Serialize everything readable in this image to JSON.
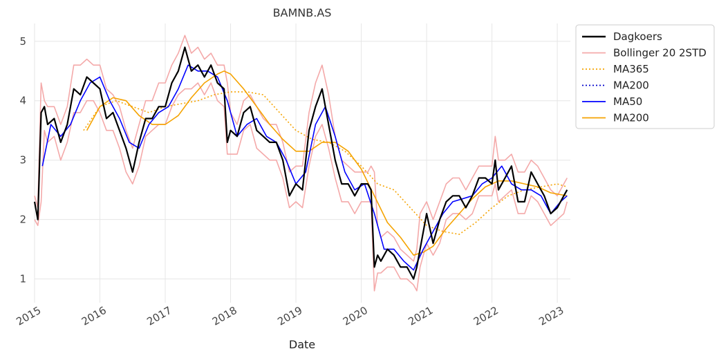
{
  "chart_data": {
    "type": "line",
    "title": "BAMNB.AS",
    "xlabel": "Date",
    "ylabel": "",
    "xlim": [
      2015.0,
      2023.2
    ],
    "ylim": [
      0.6,
      5.3
    ],
    "x_ticks": [
      2015,
      2016,
      2017,
      2018,
      2019,
      2020,
      2021,
      2022,
      2023
    ],
    "y_ticks": [
      1,
      2,
      3,
      4,
      5
    ],
    "grid": true,
    "legend_position": "outside-top-right",
    "series": [
      {
        "name": "Dagkoers",
        "color": "#000000",
        "style": "solid",
        "x": [
          2015.0,
          2015.05,
          2015.1,
          2015.15,
          2015.2,
          2015.3,
          2015.4,
          2015.5,
          2015.6,
          2015.7,
          2015.8,
          2015.9,
          2016.0,
          2016.1,
          2016.2,
          2016.3,
          2016.4,
          2016.5,
          2016.6,
          2016.7,
          2016.8,
          2016.9,
          2017.0,
          2017.1,
          2017.2,
          2017.3,
          2017.4,
          2017.5,
          2017.6,
          2017.7,
          2017.8,
          2017.9,
          2017.95,
          2018.0,
          2018.1,
          2018.2,
          2018.3,
          2018.4,
          2018.5,
          2018.6,
          2018.7,
          2018.8,
          2018.9,
          2019.0,
          2019.1,
          2019.2,
          2019.3,
          2019.4,
          2019.5,
          2019.6,
          2019.7,
          2019.8,
          2019.9,
          2020.0,
          2020.1,
          2020.15,
          2020.2,
          2020.25,
          2020.3,
          2020.4,
          2020.5,
          2020.6,
          2020.7,
          2020.8,
          2020.85,
          2020.9,
          2021.0,
          2021.1,
          2021.2,
          2021.3,
          2021.4,
          2021.5,
          2021.6,
          2021.7,
          2021.8,
          2021.9,
          2022.0,
          2022.05,
          2022.1,
          2022.2,
          2022.3,
          2022.4,
          2022.5,
          2022.6,
          2022.7,
          2022.8,
          2022.9,
          2023.0,
          2023.1,
          2023.15
        ],
        "y": [
          2.3,
          2.0,
          3.8,
          3.9,
          3.6,
          3.7,
          3.3,
          3.6,
          4.2,
          4.1,
          4.4,
          4.3,
          4.2,
          3.7,
          3.8,
          3.5,
          3.2,
          2.8,
          3.3,
          3.7,
          3.7,
          3.9,
          3.9,
          4.3,
          4.5,
          4.9,
          4.5,
          4.6,
          4.4,
          4.6,
          4.3,
          4.2,
          3.3,
          3.5,
          3.4,
          3.8,
          3.9,
          3.5,
          3.4,
          3.3,
          3.3,
          3.0,
          2.4,
          2.6,
          2.5,
          3.5,
          3.9,
          4.2,
          3.6,
          3.0,
          2.6,
          2.6,
          2.4,
          2.6,
          2.6,
          2.5,
          1.2,
          1.4,
          1.3,
          1.5,
          1.4,
          1.2,
          1.2,
          1.0,
          1.2,
          1.5,
          2.1,
          1.6,
          2.0,
          2.3,
          2.4,
          2.4,
          2.2,
          2.4,
          2.7,
          2.7,
          2.6,
          3.0,
          2.5,
          2.7,
          2.9,
          2.3,
          2.3,
          2.8,
          2.6,
          2.4,
          2.1,
          2.2,
          2.4,
          2.5
        ]
      },
      {
        "name": "Bollinger 20 2STD",
        "color": "#f4a9a9",
        "style": "solid",
        "bands": true,
        "x": [
          2015.0,
          2015.05,
          2015.1,
          2015.15,
          2015.2,
          2015.3,
          2015.4,
          2015.5,
          2015.6,
          2015.7,
          2015.8,
          2015.9,
          2016.0,
          2016.1,
          2016.2,
          2016.3,
          2016.4,
          2016.5,
          2016.6,
          2016.7,
          2016.8,
          2016.9,
          2017.0,
          2017.1,
          2017.2,
          2017.3,
          2017.4,
          2017.5,
          2017.6,
          2017.7,
          2017.8,
          2017.9,
          2017.95,
          2018.0,
          2018.1,
          2018.2,
          2018.3,
          2018.4,
          2018.5,
          2018.6,
          2018.7,
          2018.8,
          2018.9,
          2019.0,
          2019.1,
          2019.2,
          2019.3,
          2019.4,
          2019.5,
          2019.6,
          2019.7,
          2019.8,
          2019.9,
          2020.0,
          2020.1,
          2020.15,
          2020.2,
          2020.25,
          2020.3,
          2020.4,
          2020.5,
          2020.6,
          2020.7,
          2020.8,
          2020.85,
          2020.9,
          2021.0,
          2021.1,
          2021.2,
          2021.3,
          2021.4,
          2021.5,
          2021.6,
          2021.7,
          2021.8,
          2021.9,
          2022.0,
          2022.05,
          2022.1,
          2022.2,
          2022.3,
          2022.4,
          2022.5,
          2022.6,
          2022.7,
          2022.8,
          2022.9,
          2023.0,
          2023.1,
          2023.15
        ],
        "upper": [
          2.4,
          2.2,
          4.3,
          4.0,
          3.9,
          3.9,
          3.6,
          3.9,
          4.6,
          4.6,
          4.7,
          4.6,
          4.6,
          4.2,
          4.1,
          3.9,
          3.5,
          3.2,
          3.6,
          4.0,
          4.0,
          4.3,
          4.3,
          4.6,
          4.8,
          5.1,
          4.8,
          4.9,
          4.7,
          4.8,
          4.6,
          4.6,
          4.3,
          3.8,
          3.6,
          4.0,
          4.1,
          3.9,
          3.7,
          3.6,
          3.6,
          3.3,
          2.8,
          2.9,
          2.9,
          3.8,
          4.3,
          4.6,
          4.1,
          3.4,
          3.0,
          2.9,
          2.8,
          2.8,
          2.8,
          2.9,
          2.8,
          1.9,
          1.7,
          1.8,
          1.7,
          1.5,
          1.4,
          1.3,
          1.5,
          2.1,
          2.3,
          2.0,
          2.3,
          2.6,
          2.7,
          2.7,
          2.5,
          2.7,
          2.9,
          2.9,
          2.9,
          3.4,
          3.0,
          3.0,
          3.1,
          2.8,
          2.8,
          3.0,
          2.9,
          2.7,
          2.5,
          2.4,
          2.6,
          2.7
        ],
        "lower": [
          2.0,
          1.9,
          2.3,
          3.5,
          3.3,
          3.4,
          3.0,
          3.3,
          3.8,
          3.8,
          4.0,
          4.0,
          3.8,
          3.5,
          3.5,
          3.2,
          2.8,
          2.6,
          2.9,
          3.4,
          3.5,
          3.6,
          3.6,
          3.9,
          4.1,
          4.2,
          4.2,
          4.3,
          4.1,
          4.3,
          4.0,
          3.9,
          3.1,
          3.1,
          3.1,
          3.5,
          3.6,
          3.2,
          3.1,
          3.0,
          3.0,
          2.7,
          2.2,
          2.3,
          2.2,
          2.9,
          3.4,
          3.6,
          3.2,
          2.7,
          2.3,
          2.3,
          2.1,
          2.3,
          2.3,
          2.3,
          0.8,
          1.1,
          1.1,
          1.2,
          1.2,
          1.0,
          1.0,
          0.9,
          0.8,
          1.2,
          1.6,
          1.4,
          1.6,
          2.0,
          2.1,
          2.1,
          2.0,
          2.1,
          2.4,
          2.4,
          2.4,
          2.6,
          2.3,
          2.4,
          2.5,
          2.1,
          2.1,
          2.4,
          2.3,
          2.1,
          1.9,
          2.0,
          2.1,
          2.3
        ]
      },
      {
        "name": "MA365",
        "color": "#f5a300",
        "style": "dotted",
        "x": [
          2015.75,
          2016.0,
          2016.25,
          2016.5,
          2016.75,
          2017.0,
          2017.25,
          2017.5,
          2017.75,
          2018.0,
          2018.25,
          2018.5,
          2018.75,
          2019.0,
          2019.25,
          2019.5,
          2019.75,
          2020.0,
          2020.25,
          2020.5,
          2020.75,
          2021.0,
          2021.25,
          2021.5,
          2021.75,
          2022.0,
          2022.25,
          2022.5,
          2022.75,
          2023.0,
          2023.15
        ],
        "y": [
          3.5,
          3.9,
          4.0,
          3.9,
          3.8,
          3.9,
          3.95,
          4.0,
          4.1,
          4.15,
          4.15,
          4.1,
          3.8,
          3.5,
          3.35,
          3.3,
          3.15,
          2.9,
          2.6,
          2.5,
          2.2,
          1.9,
          1.8,
          1.75,
          1.95,
          2.2,
          2.4,
          2.5,
          2.55,
          2.6,
          2.55
        ]
      },
      {
        "name": "MA200",
        "color": "#0000cc",
        "style": "dotted",
        "x": [],
        "y": []
      },
      {
        "name": "MA50",
        "color": "#0000ff",
        "style": "solid",
        "x": [
          2015.12,
          2015.25,
          2015.4,
          2015.55,
          2015.7,
          2015.85,
          2016.0,
          2016.15,
          2016.3,
          2016.45,
          2016.6,
          2016.75,
          2016.9,
          2017.05,
          2017.2,
          2017.35,
          2017.5,
          2017.65,
          2017.8,
          2017.95,
          2018.1,
          2018.25,
          2018.4,
          2018.55,
          2018.7,
          2018.85,
          2019.0,
          2019.15,
          2019.3,
          2019.45,
          2019.6,
          2019.75,
          2019.9,
          2020.05,
          2020.2,
          2020.35,
          2020.5,
          2020.65,
          2020.8,
          2020.95,
          2021.1,
          2021.25,
          2021.4,
          2021.55,
          2021.7,
          2021.85,
          2022.0,
          2022.15,
          2022.3,
          2022.45,
          2022.6,
          2022.75,
          2022.9,
          2023.05,
          2023.15
        ],
        "y": [
          2.9,
          3.6,
          3.4,
          3.6,
          4.0,
          4.3,
          4.4,
          4.0,
          3.7,
          3.3,
          3.2,
          3.6,
          3.8,
          3.9,
          4.2,
          4.6,
          4.5,
          4.5,
          4.4,
          4.0,
          3.4,
          3.6,
          3.7,
          3.4,
          3.3,
          3.0,
          2.6,
          2.8,
          3.6,
          3.9,
          3.4,
          2.8,
          2.5,
          2.6,
          2.1,
          1.5,
          1.5,
          1.3,
          1.15,
          1.5,
          1.8,
          2.1,
          2.3,
          2.35,
          2.4,
          2.6,
          2.7,
          2.9,
          2.6,
          2.5,
          2.5,
          2.4,
          2.1,
          2.3,
          2.4
        ]
      },
      {
        "name": "MA200",
        "color": "#f5a300",
        "style": "solid",
        "x": [
          2015.8,
          2016.0,
          2016.2,
          2016.4,
          2016.6,
          2016.8,
          2017.0,
          2017.2,
          2017.4,
          2017.6,
          2017.8,
          2017.9,
          2018.0,
          2018.2,
          2018.4,
          2018.6,
          2018.8,
          2019.0,
          2019.2,
          2019.4,
          2019.6,
          2019.8,
          2020.0,
          2020.2,
          2020.4,
          2020.6,
          2020.8,
          2020.95,
          2021.1,
          2021.3,
          2021.5,
          2021.7,
          2021.9,
          2022.1,
          2022.3,
          2022.5,
          2022.7,
          2022.9,
          2023.15
        ],
        "y": [
          3.5,
          3.9,
          4.05,
          4.0,
          3.75,
          3.6,
          3.6,
          3.75,
          4.05,
          4.3,
          4.45,
          4.5,
          4.45,
          4.2,
          3.9,
          3.6,
          3.35,
          3.15,
          3.15,
          3.3,
          3.3,
          3.15,
          2.85,
          2.4,
          1.95,
          1.7,
          1.4,
          1.45,
          1.55,
          1.85,
          2.1,
          2.35,
          2.55,
          2.65,
          2.65,
          2.6,
          2.55,
          2.45,
          2.4
        ]
      }
    ]
  }
}
